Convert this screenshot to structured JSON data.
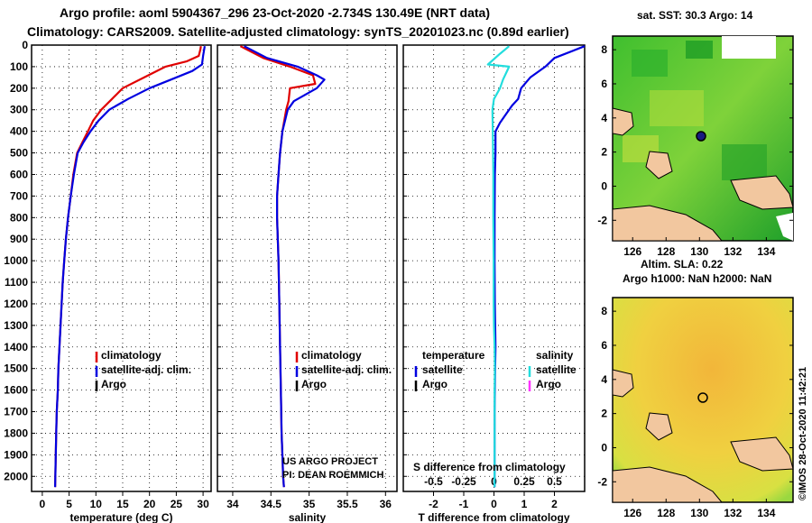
{
  "header": {
    "line1": "Argo profile: aoml 5904367_296 23-Oct-2020 -2.734S 130.49E (NRT data)",
    "line2": "Climatology: CARS2009. Satellite-adjusted climatology: synTS_20201023.nc (0.89d earlier)"
  },
  "colors": {
    "argo": "#000000",
    "climatology": "#e00000",
    "satellite": "#0000e0",
    "salinity_sat": "#22dddd",
    "salinity_argo": "#ff33ff",
    "land": "#f2c79f"
  },
  "depth_axis": {
    "ticks": [
      0,
      100,
      200,
      300,
      400,
      500,
      600,
      700,
      800,
      900,
      1000,
      1100,
      1200,
      1300,
      1400,
      1500,
      1600,
      1700,
      1800,
      1900,
      2000
    ],
    "range": [
      0,
      2070
    ]
  },
  "chart_data": [
    {
      "type": "line",
      "title": "",
      "xlabel": "temperature (deg C)",
      "ylabel": "depth",
      "xlim": [
        -2,
        31.5
      ],
      "ylim": [
        2070,
        0
      ],
      "xticks": [
        0,
        5,
        10,
        15,
        20,
        25,
        30
      ],
      "legend": [
        "climatology",
        "satellite-adj. clim.",
        "Argo"
      ],
      "series": [
        {
          "name": "climatology",
          "color": "#e00000",
          "x": [
            29.6,
            29.5,
            29.2,
            27,
            23,
            19,
            15,
            13,
            11,
            9.5,
            8.5,
            7.5,
            6.5,
            5.8,
            5.3,
            4.8,
            4.4,
            4.1,
            3.8,
            3.6,
            3.4,
            3.2,
            3.0,
            2.9,
            2.7,
            2.6,
            2.4
          ],
          "y": [
            5,
            20,
            50,
            75,
            100,
            150,
            200,
            250,
            300,
            350,
            400,
            450,
            500,
            600,
            700,
            800,
            900,
            1000,
            1100,
            1200,
            1300,
            1400,
            1500,
            1600,
            1700,
            1800,
            2050
          ]
        },
        {
          "name": "satellite-adj. clim.",
          "color": "#0000e0",
          "x": [
            30.3,
            30.2,
            30.0,
            29.8,
            28,
            24,
            20,
            16,
            12.5,
            10.5,
            9,
            7.7,
            6.6,
            5.9,
            5.3,
            4.8,
            4.4,
            4.1,
            3.8,
            3.6,
            3.4,
            3.2,
            3.0,
            2.9,
            2.7,
            2.6,
            2.4
          ],
          "y": [
            5,
            20,
            50,
            90,
            120,
            160,
            200,
            250,
            300,
            350,
            400,
            450,
            500,
            600,
            700,
            800,
            900,
            1000,
            1100,
            1200,
            1300,
            1400,
            1500,
            1600,
            1700,
            1800,
            2050
          ]
        }
      ]
    },
    {
      "type": "line",
      "title": "",
      "xlabel": "salinity",
      "ylabel": "",
      "xlim": [
        33.8,
        36.15
      ],
      "ylim": [
        2070,
        0
      ],
      "xticks": [
        34,
        34.5,
        35,
        35.5,
        36
      ],
      "legend": [
        "climatology",
        "satellite-adj. clim.",
        "Argo"
      ],
      "annotations": [
        "US ARGO PROJECT",
        "PI: DEAN ROEMMICH"
      ],
      "series": [
        {
          "name": "climatology",
          "color": "#e00000",
          "x": [
            34.1,
            34.4,
            34.75,
            35.05,
            35.08,
            34.75,
            34.73,
            34.7,
            34.65,
            34.62,
            34.6,
            34.58,
            34.58,
            34.59,
            34.6,
            34.61,
            34.62,
            34.63,
            34.64,
            34.65,
            34.66,
            34.67
          ],
          "y": [
            5,
            60,
            100,
            140,
            180,
            200,
            260,
            300,
            400,
            500,
            600,
            700,
            800,
            900,
            1000,
            1200,
            1400,
            1600,
            1800,
            1900,
            2000,
            2050
          ]
        },
        {
          "name": "satellite-adj. clim.",
          "color": "#0000e0",
          "x": [
            34.15,
            34.45,
            34.85,
            35.1,
            35.2,
            35.1,
            34.8,
            34.72,
            34.65,
            34.62,
            34.6,
            34.58,
            34.58,
            34.59,
            34.6,
            34.61,
            34.62,
            34.63,
            34.64,
            34.65,
            34.66,
            34.67
          ],
          "y": [
            5,
            60,
            100,
            140,
            160,
            200,
            260,
            300,
            400,
            500,
            600,
            700,
            800,
            900,
            1000,
            1200,
            1400,
            1600,
            1800,
            1900,
            2000,
            2050
          ]
        }
      ]
    },
    {
      "type": "line",
      "title": "",
      "xlabel": "T difference from climatology",
      "ylabel": "",
      "xlim": [
        -3,
        3
      ],
      "ylim": [
        2070,
        0
      ],
      "xticks": [
        -2,
        -1,
        0,
        1,
        2
      ],
      "top_axis_label": "S difference from climatology",
      "top_xticks": [
        "-0.5",
        "-0.25",
        "0",
        "0.25",
        "0.5"
      ],
      "legend_left_title": "temperature",
      "legend_right_title": "salinity",
      "legend": [
        "satellite",
        "Argo"
      ],
      "series": [
        {
          "name": "temperature satellite",
          "color": "#0000e0",
          "x": [
            3.0,
            2.0,
            1.7,
            1.2,
            0.9,
            0.8,
            0.6,
            0.4,
            0.2,
            0.05,
            0.05,
            0.03,
            0.02,
            0.02,
            0.03,
            0.05,
            0.04,
            0.03,
            0.02,
            0.02,
            0.02,
            0.02
          ],
          "y": [
            5,
            60,
            100,
            150,
            200,
            250,
            280,
            320,
            360,
            400,
            500,
            600,
            800,
            1000,
            1200,
            1400,
            1500,
            1600,
            1700,
            1800,
            1900,
            2050
          ]
        },
        {
          "name": "salinity satellite",
          "color": "#22dddd",
          "x": [
            0.5,
            0.2,
            -0.2,
            0.5,
            0.4,
            0.3,
            0.2,
            0,
            -0.05,
            -0.04,
            -0.03,
            -0.02,
            -0.02,
            -0.01,
            -0.01,
            0,
            0.02,
            0.03,
            0.02,
            0.02,
            0.02,
            0.02
          ],
          "y": [
            5,
            40,
            90,
            100,
            130,
            160,
            200,
            250,
            300,
            400,
            500,
            600,
            800,
            1000,
            1200,
            1300,
            1400,
            1500,
            1600,
            1700,
            1900,
            2050
          ]
        }
      ]
    }
  ],
  "sst_map": {
    "title": "sat. SST: 30.3 Argo: 14",
    "yticks": [
      8,
      6,
      4,
      2,
      0,
      -2
    ],
    "xticks": [
      126,
      128,
      130,
      132,
      134
    ]
  },
  "sla_map": {
    "title1": "Altim. SLA: 0.22",
    "title2": "Argo h1000: NaN h2000: NaN",
    "yticks": [
      8,
      6,
      4,
      2,
      0,
      -2
    ],
    "xticks": [
      126,
      128,
      130,
      132,
      134
    ]
  },
  "credit": "©IMOS 28-Oct-2020 11:42:21"
}
